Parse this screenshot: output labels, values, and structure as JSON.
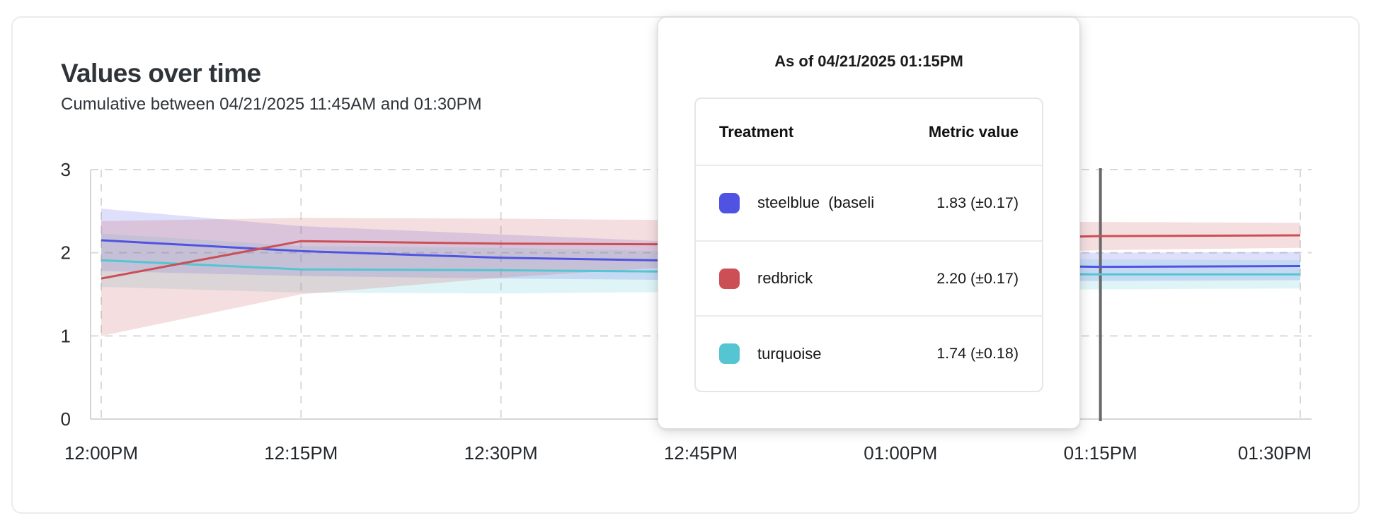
{
  "header": {
    "title": "Values over time",
    "subtitle": "Cumulative between 04/21/2025 11:45AM and 01:30PM"
  },
  "tooltip": {
    "title": "As of 04/21/2025 01:15PM",
    "columns": [
      "Treatment",
      "Metric value"
    ],
    "rows": [
      {
        "label": "steelblue  (baseli",
        "value": "1.83 (±0.17)",
        "color": "#5053e2"
      },
      {
        "label": "redbrick",
        "value": "2.20 (±0.17)",
        "color": "#cb4f55"
      },
      {
        "label": "turquoise",
        "value": "1.74 (±0.18)",
        "color": "#55c4d3"
      }
    ]
  },
  "chart_data": {
    "type": "line",
    "title": "Values over time",
    "xlabel": "",
    "ylabel": "",
    "x_labels": [
      "12:00PM",
      "12:15PM",
      "12:30PM",
      "12:45PM",
      "01:00PM",
      "01:15PM",
      "01:30PM"
    ],
    "y_ticks": [
      0,
      1,
      2,
      3
    ],
    "ylim": [
      0,
      3
    ],
    "grid": "dashed",
    "hover_index": 5,
    "hover_time": "01:15PM",
    "crosshair_color": "#696969",
    "series": [
      {
        "name": "steelblue",
        "color": "#5053e2",
        "values": [
          2.15,
          2.02,
          1.94,
          1.9,
          1.86,
          1.83,
          1.84
        ],
        "lower": [
          1.78,
          1.72,
          1.69,
          1.67,
          1.66,
          1.66,
          1.67
        ],
        "upper": [
          2.53,
          2.32,
          2.22,
          2.12,
          2.05,
          2.0,
          2.01
        ]
      },
      {
        "name": "redbrick",
        "color": "#cb4f55",
        "values": [
          1.69,
          2.14,
          2.11,
          2.1,
          2.15,
          2.2,
          2.21
        ],
        "lower": [
          1.0,
          1.5,
          1.7,
          1.85,
          1.97,
          2.03,
          2.06
        ],
        "upper": [
          2.38,
          2.42,
          2.41,
          2.39,
          2.38,
          2.37,
          2.36
        ]
      },
      {
        "name": "turquoise",
        "color": "#55c4d3",
        "values": [
          1.91,
          1.8,
          1.79,
          1.77,
          1.75,
          1.74,
          1.74
        ],
        "lower": [
          1.59,
          1.52,
          1.51,
          1.53,
          1.55,
          1.56,
          1.57
        ],
        "upper": [
          2.23,
          2.08,
          2.06,
          2.01,
          1.96,
          1.92,
          1.91
        ]
      }
    ]
  }
}
